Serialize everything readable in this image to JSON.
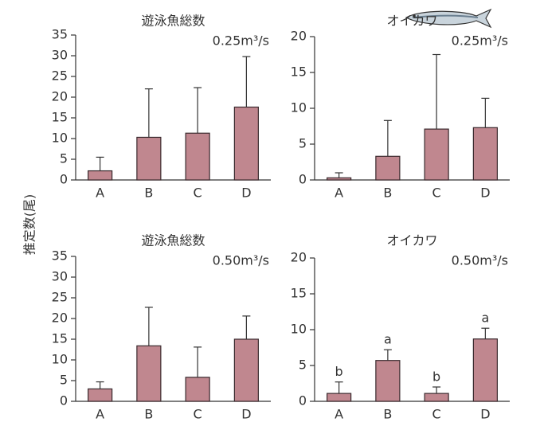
{
  "ylabel": "推定数(尾)",
  "chart_data": [
    {
      "type": "bar",
      "title": "遊泳魚総数",
      "annotation": "0.25m³/s",
      "categories": [
        "A",
        "B",
        "C",
        "D"
      ],
      "values": [
        2.2,
        10.3,
        11.3,
        17.6
      ],
      "errors": [
        3.3,
        11.7,
        11,
        12.2
      ],
      "color": "#c0878f",
      "ylim": [
        0,
        35
      ],
      "yticks": [
        0,
        5,
        10,
        15,
        20,
        25,
        30,
        35
      ]
    },
    {
      "type": "bar",
      "title": "オイカワ",
      "annotation": "0.25m³/s",
      "categories": [
        "A",
        "B",
        "C",
        "D"
      ],
      "values": [
        0.3,
        3.3,
        7.1,
        7.3
      ],
      "errors": [
        0.7,
        5,
        10.4,
        4.1
      ],
      "color": "#c0878f",
      "ylim": [
        0,
        20
      ],
      "yticks": [
        0,
        5,
        10,
        15,
        20
      ]
    },
    {
      "type": "bar",
      "title": "遊泳魚総数",
      "annotation": "0.50m³/s",
      "categories": [
        "A",
        "B",
        "C",
        "D"
      ],
      "values": [
        3.0,
        13.4,
        5.8,
        15.0
      ],
      "errors": [
        1.7,
        9.3,
        7.3,
        5.6
      ],
      "color": "#c0878f",
      "ylim": [
        0,
        35
      ],
      "yticks": [
        0,
        5,
        10,
        15,
        20,
        25,
        30,
        35
      ]
    },
    {
      "type": "bar",
      "title": "オイカワ",
      "annotation": "0.50m³/s",
      "categories": [
        "A",
        "B",
        "C",
        "D"
      ],
      "values": [
        1.1,
        5.7,
        1.1,
        8.7
      ],
      "errors": [
        1.6,
        1.5,
        0.9,
        1.5
      ],
      "annotations": [
        "b",
        "a",
        "b",
        "a"
      ],
      "color": "#c0878f",
      "ylim": [
        0,
        20
      ],
      "yticks": [
        0,
        5,
        10,
        15,
        20
      ]
    }
  ]
}
